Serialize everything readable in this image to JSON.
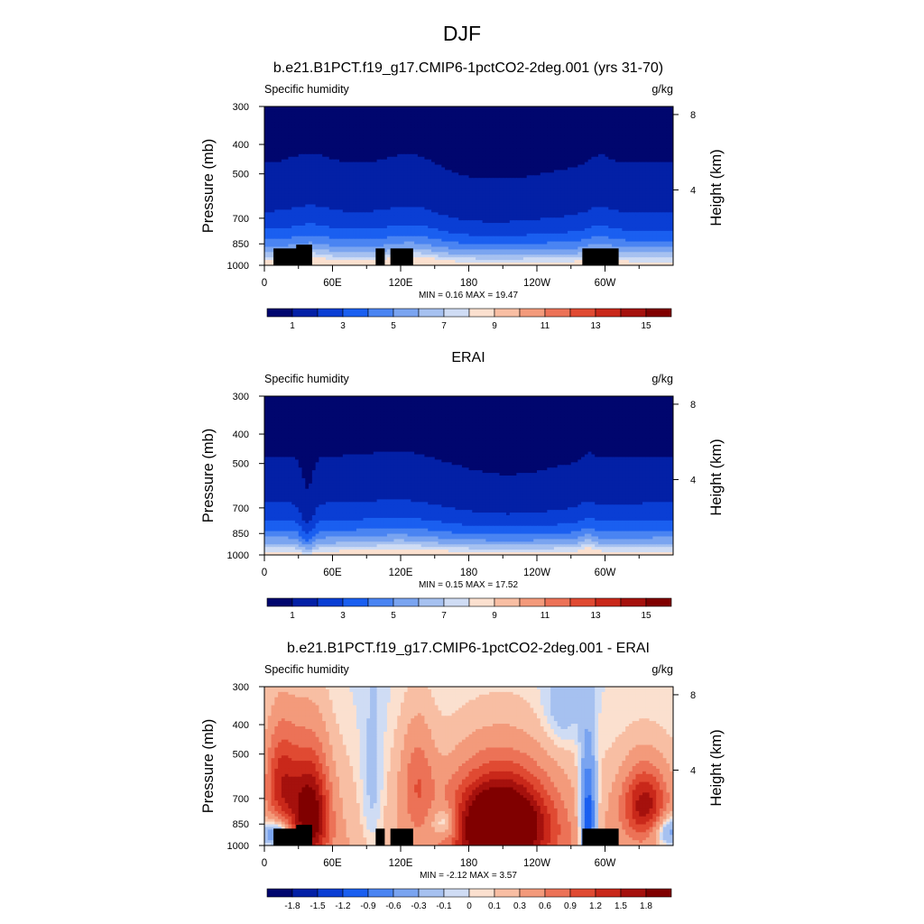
{
  "chart_data": [
    {
      "type": "heatmap",
      "figure_title": "DJF",
      "title": "b.e21.B1PCT.f19_g17.CMIP6-1pctCO2-2deg.001 (yrs 31-70)",
      "left_label": "Specific humidity",
      "right_label": "g/kg",
      "ylabel": "Pressure (mb)",
      "y2label": "Height (km)",
      "y_ticks": [
        "300",
        "400",
        "500",
        "700",
        "850",
        "1000"
      ],
      "y_tick_values": [
        300,
        400,
        500,
        700,
        850,
        1000
      ],
      "y2_ticks": [
        "8",
        "4"
      ],
      "x_ticks": [
        "0",
        "60E",
        "120E",
        "180",
        "120W",
        "60W"
      ],
      "x_tick_values": [
        0,
        60,
        120,
        180,
        240,
        300
      ],
      "xlim": [
        0,
        360
      ],
      "ylim": [
        1000,
        300
      ],
      "stats": "MIN =   0.16  MAX =  19.47",
      "min": 0.16,
      "max": 19.47,
      "colorbar_labels": [
        "1",
        "3",
        "5",
        "7",
        "9",
        "11",
        "13",
        "15"
      ],
      "colorbar_levels": [
        1,
        3,
        5,
        7,
        9,
        11,
        13,
        15
      ],
      "n_colors": 16,
      "field": "humidity",
      "topography": true
    },
    {
      "type": "heatmap",
      "title": "ERAI",
      "left_label": "Specific humidity",
      "right_label": "g/kg",
      "ylabel": "Pressure (mb)",
      "y2label": "Height (km)",
      "y_ticks": [
        "300",
        "400",
        "500",
        "700",
        "850",
        "1000"
      ],
      "y_tick_values": [
        300,
        400,
        500,
        700,
        850,
        1000
      ],
      "y2_ticks": [
        "8",
        "4"
      ],
      "x_ticks": [
        "0",
        "60E",
        "120E",
        "180",
        "120W",
        "60W"
      ],
      "x_tick_values": [
        0,
        60,
        120,
        180,
        240,
        300
      ],
      "xlim": [
        0,
        360
      ],
      "ylim": [
        1000,
        300
      ],
      "stats": "MIN =   0.15  MAX =  17.52",
      "min": 0.15,
      "max": 17.52,
      "colorbar_labels": [
        "1",
        "3",
        "5",
        "7",
        "9",
        "11",
        "13",
        "15"
      ],
      "colorbar_levels": [
        1,
        3,
        5,
        7,
        9,
        11,
        13,
        15
      ],
      "n_colors": 16,
      "field": "humidity_obs",
      "topography": false
    },
    {
      "type": "heatmap",
      "title": "b.e21.B1PCT.f19_g17.CMIP6-1pctCO2-2deg.001 - ERAI",
      "left_label": "Specific humidity",
      "right_label": "g/kg",
      "ylabel": "Pressure (mb)",
      "y2label": "Height (km)",
      "y_ticks": [
        "300",
        "400",
        "500",
        "700",
        "850",
        "1000"
      ],
      "y_tick_values": [
        300,
        400,
        500,
        700,
        850,
        1000
      ],
      "y2_ticks": [
        "8",
        "4"
      ],
      "x_ticks": [
        "0",
        "60E",
        "120E",
        "180",
        "120W",
        "60W"
      ],
      "x_tick_values": [
        0,
        60,
        120,
        180,
        240,
        300
      ],
      "xlim": [
        0,
        360
      ],
      "ylim": [
        1000,
        300
      ],
      "stats": "MIN =  -2.12  MAX =   3.57",
      "min": -2.12,
      "max": 3.57,
      "colorbar_labels": [
        "-1.8",
        "-1.5",
        "-1.2",
        "-0.9",
        "-0.6",
        "-0.3",
        "-0.1",
        "0",
        "0.1",
        "0.3",
        "0.6",
        "0.9",
        "1.2",
        "1.5",
        "1.8"
      ],
      "colorbar_levels": [
        -1.8,
        -1.5,
        -1.2,
        -0.9,
        -0.6,
        -0.3,
        -0.1,
        0,
        0.1,
        0.3,
        0.6,
        0.9,
        1.2,
        1.5,
        1.8
      ],
      "n_colors": 16,
      "field": "difference",
      "topography": true
    }
  ],
  "colors": {
    "palette": [
      "#00066e",
      "#0320a6",
      "#0a3ed4",
      "#1a5ff0",
      "#4a84f2",
      "#7aa4f0",
      "#a6c1f0",
      "#cfdcf4",
      "#fbe0cf",
      "#f8bea3",
      "#f39a7b",
      "#ec7257",
      "#e04a32",
      "#c9281a",
      "#a5110d",
      "#800000"
    ],
    "topography": "#000000"
  }
}
